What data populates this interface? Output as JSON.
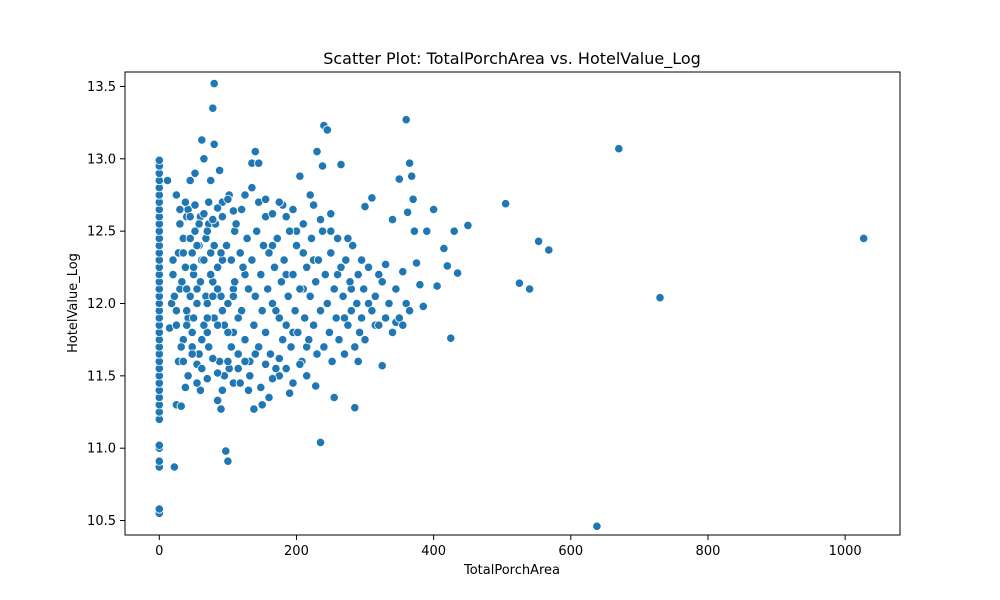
{
  "chart_data": {
    "type": "scatter",
    "title": "Scatter Plot: TotalPorchArea vs. HotelValue_Log",
    "xlabel": "TotalPorchArea",
    "ylabel": "HotelValue_Log",
    "xlim": [
      -50,
      1080
    ],
    "ylim": [
      10.4,
      13.6
    ],
    "xticks": [
      0,
      200,
      400,
      600,
      800,
      1000
    ],
    "xtick_labels": [
      "0",
      "200",
      "400",
      "600",
      "800",
      "1000"
    ],
    "yticks": [
      10.5,
      11.0,
      11.5,
      12.0,
      12.5,
      13.0,
      13.5
    ],
    "ytick_labels": [
      "10.5",
      "11.0",
      "11.5",
      "12.0",
      "12.5",
      "13.0",
      "13.5"
    ],
    "grid": false,
    "marker_color": "#1f77b4",
    "marker_edge_color": "#ffffff",
    "points": [
      [
        0,
        10.55
      ],
      [
        0,
        10.58
      ],
      [
        0,
        10.87
      ],
      [
        0,
        10.91
      ],
      [
        0,
        11.0
      ],
      [
        0,
        11.02
      ],
      [
        0,
        11.2
      ],
      [
        0,
        11.25
      ],
      [
        0,
        11.3
      ],
      [
        0,
        11.35
      ],
      [
        0,
        11.4
      ],
      [
        0,
        11.45
      ],
      [
        0,
        11.5
      ],
      [
        0,
        11.55
      ],
      [
        0,
        11.6
      ],
      [
        0,
        11.65
      ],
      [
        0,
        11.7
      ],
      [
        0,
        11.75
      ],
      [
        0,
        11.8
      ],
      [
        0,
        11.85
      ],
      [
        0,
        11.9
      ],
      [
        0,
        11.95
      ],
      [
        0,
        12.0
      ],
      [
        0,
        12.05
      ],
      [
        0,
        12.1
      ],
      [
        0,
        12.15
      ],
      [
        0,
        12.2
      ],
      [
        0,
        12.25
      ],
      [
        0,
        12.3
      ],
      [
        0,
        12.35
      ],
      [
        0,
        12.4
      ],
      [
        0,
        12.45
      ],
      [
        0,
        12.5
      ],
      [
        0,
        12.55
      ],
      [
        0,
        12.6
      ],
      [
        0,
        12.65
      ],
      [
        0,
        12.7
      ],
      [
        0,
        12.75
      ],
      [
        0,
        12.8
      ],
      [
        0,
        12.85
      ],
      [
        0,
        12.9
      ],
      [
        0,
        12.95
      ],
      [
        0,
        12.99
      ],
      [
        12,
        12.85
      ],
      [
        15,
        11.83
      ],
      [
        18,
        12.0
      ],
      [
        20,
        12.3
      ],
      [
        22,
        10.87
      ],
      [
        25,
        11.3
      ],
      [
        25,
        12.75
      ],
      [
        28,
        11.6
      ],
      [
        30,
        12.1
      ],
      [
        32,
        11.29
      ],
      [
        35,
        12.45
      ],
      [
        38,
        11.42
      ],
      [
        40,
        12.6
      ],
      [
        42,
        11.9
      ],
      [
        45,
        12.85
      ],
      [
        48,
        11.7
      ],
      [
        50,
        12.2
      ],
      [
        52,
        12.9
      ],
      [
        55,
        11.58
      ],
      [
        58,
        12.4
      ],
      [
        60,
        11.4
      ],
      [
        62,
        13.13
      ],
      [
        65,
        13.0
      ],
      [
        68,
        12.05
      ],
      [
        70,
        11.8
      ],
      [
        72,
        12.55
      ],
      [
        75,
        12.85
      ],
      [
        78,
        13.35
      ],
      [
        80,
        13.52
      ],
      [
        80,
        13.1
      ],
      [
        85,
        11.33
      ],
      [
        88,
        12.92
      ],
      [
        90,
        11.27
      ],
      [
        92,
        12.3
      ],
      [
        95,
        11.5
      ],
      [
        97,
        10.98
      ],
      [
        100,
        10.91
      ],
      [
        102,
        12.75
      ],
      [
        105,
        11.7
      ],
      [
        108,
        12.1
      ],
      [
        110,
        12.5
      ],
      [
        115,
        11.9
      ],
      [
        120,
        12.65
      ],
      [
        125,
        12.2
      ],
      [
        130,
        11.4
      ],
      [
        135,
        12.97
      ],
      [
        138,
        11.27
      ],
      [
        140,
        13.05
      ],
      [
        145,
        12.97
      ],
      [
        150,
        11.3
      ],
      [
        155,
        12.6
      ],
      [
        160,
        11.35
      ],
      [
        165,
        12.4
      ],
      [
        170,
        11.95
      ],
      [
        175,
        11.5
      ],
      [
        180,
        12.68
      ],
      [
        185,
        12.2
      ],
      [
        190,
        11.38
      ],
      [
        195,
        11.8
      ],
      [
        200,
        12.5
      ],
      [
        205,
        12.88
      ],
      [
        210,
        12.1
      ],
      [
        215,
        11.7
      ],
      [
        220,
        12.75
      ],
      [
        225,
        12.3
      ],
      [
        228,
        11.43
      ],
      [
        230,
        13.05
      ],
      [
        235,
        11.04
      ],
      [
        238,
        12.95
      ],
      [
        240,
        13.23
      ],
      [
        245,
        13.2
      ],
      [
        250,
        12.5
      ],
      [
        255,
        11.35
      ],
      [
        260,
        12.2
      ],
      [
        265,
        12.96
      ],
      [
        270,
        11.9
      ],
      [
        275,
        12.45
      ],
      [
        280,
        12.1
      ],
      [
        285,
        11.28
      ],
      [
        290,
        11.6
      ],
      [
        295,
        12.3
      ],
      [
        300,
        12.67
      ],
      [
        305,
        12.0
      ],
      [
        310,
        12.73
      ],
      [
        315,
        11.85
      ],
      [
        320,
        12.2
      ],
      [
        325,
        11.57
      ],
      [
        330,
        12.27
      ],
      [
        340,
        12.58
      ],
      [
        345,
        11.87
      ],
      [
        350,
        12.86
      ],
      [
        355,
        12.22
      ],
      [
        360,
        13.27
      ],
      [
        362,
        12.63
      ],
      [
        365,
        12.97
      ],
      [
        368,
        12.88
      ],
      [
        370,
        12.72
      ],
      [
        372,
        12.5
      ],
      [
        375,
        12.28
      ],
      [
        380,
        12.13
      ],
      [
        385,
        11.98
      ],
      [
        390,
        12.5
      ],
      [
        400,
        12.65
      ],
      [
        405,
        12.12
      ],
      [
        415,
        12.38
      ],
      [
        420,
        12.26
      ],
      [
        425,
        11.76
      ],
      [
        430,
        12.5
      ],
      [
        435,
        12.21
      ],
      [
        450,
        12.54
      ],
      [
        505,
        12.69
      ],
      [
        525,
        12.14
      ],
      [
        540,
        12.1
      ],
      [
        553,
        12.43
      ],
      [
        568,
        12.37
      ],
      [
        638,
        10.46
      ],
      [
        670,
        13.07
      ],
      [
        730,
        12.04
      ],
      [
        1027,
        12.45
      ],
      [
        20,
        12.2
      ],
      [
        22,
        12.05
      ],
      [
        25,
        11.95
      ],
      [
        28,
        12.35
      ],
      [
        30,
        12.55
      ],
      [
        33,
        12.15
      ],
      [
        35,
        11.75
      ],
      [
        38,
        12.25
      ],
      [
        40,
        11.85
      ],
      [
        42,
        12.65
      ],
      [
        45,
        12.05
      ],
      [
        48,
        12.35
      ],
      [
        50,
        11.9
      ],
      [
        52,
        12.5
      ],
      [
        55,
        12.1
      ],
      [
        58,
        11.65
      ],
      [
        60,
        12.6
      ],
      [
        62,
        12.3
      ],
      [
        65,
        11.85
      ],
      [
        68,
        12.45
      ],
      [
        70,
        12.0
      ],
      [
        72,
        11.7
      ],
      [
        75,
        12.35
      ],
      [
        78,
        12.15
      ],
      [
        80,
        11.9
      ],
      [
        82,
        12.55
      ],
      [
        85,
        12.25
      ],
      [
        88,
        11.6
      ],
      [
        90,
        12.05
      ],
      [
        92,
        12.7
      ],
      [
        95,
        11.85
      ],
      [
        98,
        12.4
      ],
      [
        100,
        12.0
      ],
      [
        102,
        11.55
      ],
      [
        105,
        12.3
      ],
      [
        108,
        11.8
      ],
      [
        110,
        12.15
      ],
      [
        112,
        12.55
      ],
      [
        115,
        11.65
      ],
      [
        118,
        12.35
      ],
      [
        120,
        11.95
      ],
      [
        122,
        12.25
      ],
      [
        125,
        11.75
      ],
      [
        128,
        12.45
      ],
      [
        130,
        12.1
      ],
      [
        132,
        11.6
      ],
      [
        135,
        12.3
      ],
      [
        138,
        11.85
      ],
      [
        140,
        12.05
      ],
      [
        142,
        12.5
      ],
      [
        145,
        11.7
      ],
      [
        148,
        12.2
      ],
      [
        150,
        11.95
      ],
      [
        152,
        12.4
      ],
      [
        155,
        11.8
      ],
      [
        158,
        12.1
      ],
      [
        160,
        12.35
      ],
      [
        162,
        11.65
      ],
      [
        165,
        12.0
      ],
      [
        168,
        12.25
      ],
      [
        170,
        11.55
      ],
      [
        172,
        12.45
      ],
      [
        175,
        11.9
      ],
      [
        178,
        12.15
      ],
      [
        180,
        11.75
      ],
      [
        182,
        12.3
      ],
      [
        185,
        11.85
      ],
      [
        188,
        12.05
      ],
      [
        190,
        12.5
      ],
      [
        192,
        11.7
      ],
      [
        195,
        12.2
      ],
      [
        198,
        11.95
      ],
      [
        200,
        12.4
      ],
      [
        202,
        11.8
      ],
      [
        205,
        12.1
      ],
      [
        208,
        11.6
      ],
      [
        210,
        12.35
      ],
      [
        212,
        11.9
      ],
      [
        215,
        12.25
      ],
      [
        218,
        11.75
      ],
      [
        220,
        12.05
      ],
      [
        222,
        12.45
      ],
      [
        225,
        11.85
      ],
      [
        228,
        12.15
      ],
      [
        230,
        11.65
      ],
      [
        232,
        12.3
      ],
      [
        235,
        11.95
      ],
      [
        238,
        12.5
      ],
      [
        240,
        11.7
      ],
      [
        242,
        12.2
      ],
      [
        245,
        12.0
      ],
      [
        248,
        11.8
      ],
      [
        250,
        12.35
      ],
      [
        252,
        11.6
      ],
      [
        255,
        12.1
      ],
      [
        258,
        11.9
      ],
      [
        260,
        12.45
      ],
      [
        262,
        11.75
      ],
      [
        265,
        12.25
      ],
      [
        268,
        12.05
      ],
      [
        270,
        11.65
      ],
      [
        272,
        12.3
      ],
      [
        275,
        11.85
      ],
      [
        278,
        12.15
      ],
      [
        280,
        11.95
      ],
      [
        282,
        12.4
      ],
      [
        285,
        11.7
      ],
      [
        288,
        12.0
      ],
      [
        290,
        12.2
      ],
      [
        292,
        11.8
      ],
      [
        295,
        11.9
      ],
      [
        298,
        12.1
      ],
      [
        300,
        11.75
      ],
      [
        305,
        12.25
      ],
      [
        310,
        11.95
      ],
      [
        315,
        12.05
      ],
      [
        320,
        11.85
      ],
      [
        325,
        12.15
      ],
      [
        330,
        11.9
      ],
      [
        335,
        12.0
      ],
      [
        340,
        11.8
      ],
      [
        345,
        12.1
      ],
      [
        350,
        11.9
      ],
      [
        355,
        11.85
      ],
      [
        360,
        12.0
      ],
      [
        365,
        11.95
      ],
      [
        35,
        12.35
      ],
      [
        40,
        12.1
      ],
      [
        45,
        12.45
      ],
      [
        50,
        12.25
      ],
      [
        55,
        12.4
      ],
      [
        60,
        12.15
      ],
      [
        65,
        12.3
      ],
      [
        70,
        12.5
      ],
      [
        75,
        12.2
      ],
      [
        80,
        12.4
      ],
      [
        85,
        12.1
      ],
      [
        90,
        12.35
      ],
      [
        30,
        12.65
      ],
      [
        38,
        12.7
      ],
      [
        45,
        12.6
      ],
      [
        52,
        12.68
      ],
      [
        58,
        12.55
      ],
      [
        65,
        12.62
      ],
      [
        72,
        12.7
      ],
      [
        78,
        12.58
      ],
      [
        85,
        12.66
      ],
      [
        92,
        12.6
      ],
      [
        100,
        12.72
      ],
      [
        108,
        12.64
      ],
      [
        35,
        11.6
      ],
      [
        42,
        11.5
      ],
      [
        48,
        11.65
      ],
      [
        55,
        11.45
      ],
      [
        62,
        11.55
      ],
      [
        70,
        11.48
      ],
      [
        78,
        11.62
      ],
      [
        85,
        11.52
      ],
      [
        92,
        11.4
      ],
      [
        100,
        11.6
      ],
      [
        108,
        11.45
      ],
      [
        115,
        11.55
      ],
      [
        25,
        11.85
      ],
      [
        32,
        11.7
      ],
      [
        40,
        11.95
      ],
      [
        48,
        11.8
      ],
      [
        55,
        12.0
      ],
      [
        62,
        11.75
      ],
      [
        70,
        11.9
      ],
      [
        78,
        12.05
      ],
      [
        85,
        11.85
      ],
      [
        92,
        11.95
      ],
      [
        100,
        11.8
      ],
      [
        108,
        12.05
      ],
      [
        118,
        11.45
      ],
      [
        125,
        11.6
      ],
      [
        132,
        11.5
      ],
      [
        140,
        11.65
      ],
      [
        148,
        11.42
      ],
      [
        155,
        11.58
      ],
      [
        165,
        11.48
      ],
      [
        175,
        11.62
      ],
      [
        185,
        11.55
      ],
      [
        195,
        11.45
      ],
      [
        205,
        11.58
      ],
      [
        215,
        11.5
      ],
      [
        125,
        12.75
      ],
      [
        135,
        12.8
      ],
      [
        145,
        12.7
      ],
      [
        155,
        12.72
      ],
      [
        165,
        12.62
      ],
      [
        175,
        12.7
      ],
      [
        185,
        12.6
      ],
      [
        195,
        12.65
      ],
      [
        210,
        12.55
      ],
      [
        225,
        12.68
      ],
      [
        235,
        12.58
      ],
      [
        250,
        12.62
      ]
    ]
  }
}
